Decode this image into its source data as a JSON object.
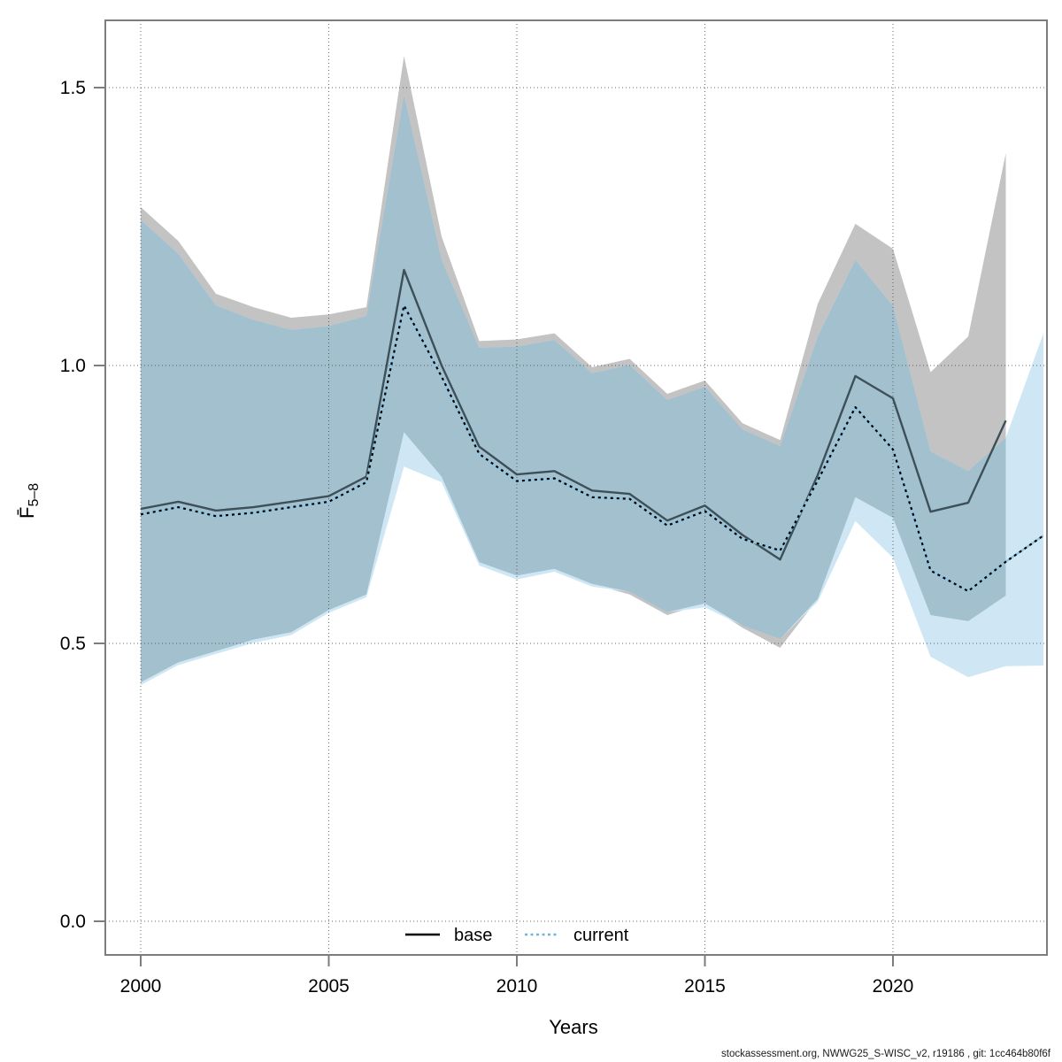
{
  "figure": {
    "xlabel": "Years",
    "ylabel": {
      "main": "F̄",
      "sub": "5–8"
    },
    "footer": "stockassessment.org, NWWG25_S-WISC_v2, r19186 , git: 1cc464b80f6f"
  },
  "legend": {
    "items": [
      {
        "label": "base"
      },
      {
        "label": "current"
      }
    ]
  },
  "chart_data": {
    "type": "line",
    "title": "",
    "xlabel": "Years",
    "ylabel": "Fbar age 5-8",
    "grid": true,
    "legend_position": "bottom-center",
    "x_ticks": [
      2000,
      2005,
      2010,
      2015,
      2020
    ],
    "y_ticks": [
      0.0,
      0.5,
      1.0,
      1.5
    ],
    "xlim": [
      1999.06,
      2024.1
    ],
    "ylim": [
      -0.06,
      1.62
    ],
    "series": [
      {
        "name": "base",
        "line_style": "solid",
        "line_color": "#3d5059",
        "legend_color": "#000000",
        "band_color": "#c3c3c3",
        "years": [
          2000,
          2001,
          2002,
          2003,
          2004,
          2005,
          2006,
          2007,
          2008,
          2009,
          2010,
          2011,
          2012,
          2013,
          2014,
          2015,
          2016,
          2017,
          2018,
          2019,
          2020,
          2021,
          2022,
          2023
        ],
        "values": [
          0.742,
          0.755,
          0.739,
          0.745,
          0.755,
          0.765,
          0.8,
          1.172,
          1.0,
          0.854,
          0.804,
          0.81,
          0.775,
          0.769,
          0.721,
          0.748,
          0.695,
          0.651,
          0.803,
          0.981,
          0.941,
          0.737,
          0.753,
          0.901
        ],
        "lower": [
          0.43,
          0.466,
          0.486,
          0.507,
          0.52,
          0.56,
          0.588,
          0.88,
          0.8,
          0.646,
          0.622,
          0.634,
          0.607,
          0.588,
          0.551,
          0.572,
          0.528,
          0.492,
          0.58,
          0.763,
          0.726,
          0.551,
          0.54,
          0.586
        ],
        "upper": [
          1.285,
          1.224,
          1.129,
          1.105,
          1.086,
          1.092,
          1.105,
          1.557,
          1.232,
          1.044,
          1.047,
          1.058,
          0.997,
          1.012,
          0.949,
          0.973,
          0.896,
          0.866,
          1.111,
          1.255,
          1.21,
          0.988,
          1.052,
          1.382
        ]
      },
      {
        "name": "current",
        "line_style": "dotted",
        "line_color": "#000000",
        "line_underlay_color": "#8fc5e2",
        "legend_color": "#74b2d8",
        "band_color": "#cfe7f5",
        "years": [
          2000,
          2001,
          2002,
          2003,
          2004,
          2005,
          2006,
          2007,
          2008,
          2009,
          2010,
          2011,
          2012,
          2013,
          2014,
          2015,
          2016,
          2017,
          2018,
          2019,
          2020,
          2021,
          2022,
          2023,
          2024
        ],
        "values": [
          0.732,
          0.745,
          0.729,
          0.735,
          0.745,
          0.755,
          0.79,
          1.108,
          0.98,
          0.841,
          0.792,
          0.797,
          0.763,
          0.76,
          0.712,
          0.738,
          0.688,
          0.667,
          0.793,
          0.925,
          0.849,
          0.631,
          0.594,
          0.647,
          0.694
        ],
        "lower": [
          0.425,
          0.461,
          0.481,
          0.501,
          0.515,
          0.555,
          0.583,
          0.818,
          0.79,
          0.64,
          0.615,
          0.629,
          0.602,
          0.593,
          0.556,
          0.565,
          0.532,
          0.508,
          0.575,
          0.72,
          0.654,
          0.476,
          0.439,
          0.459,
          0.46
        ],
        "upper": [
          1.262,
          1.201,
          1.108,
          1.082,
          1.064,
          1.071,
          1.089,
          1.487,
          1.19,
          1.032,
          1.034,
          1.046,
          0.986,
          1.001,
          0.938,
          0.962,
          0.885,
          0.855,
          1.052,
          1.19,
          1.107,
          0.845,
          0.81,
          0.87,
          1.058
        ]
      }
    ],
    "overlap_band_color": "#a3c0cf",
    "axis_color": "#7d7d7d",
    "grid_color": "#4a4a4a",
    "text_color": "#000000"
  }
}
